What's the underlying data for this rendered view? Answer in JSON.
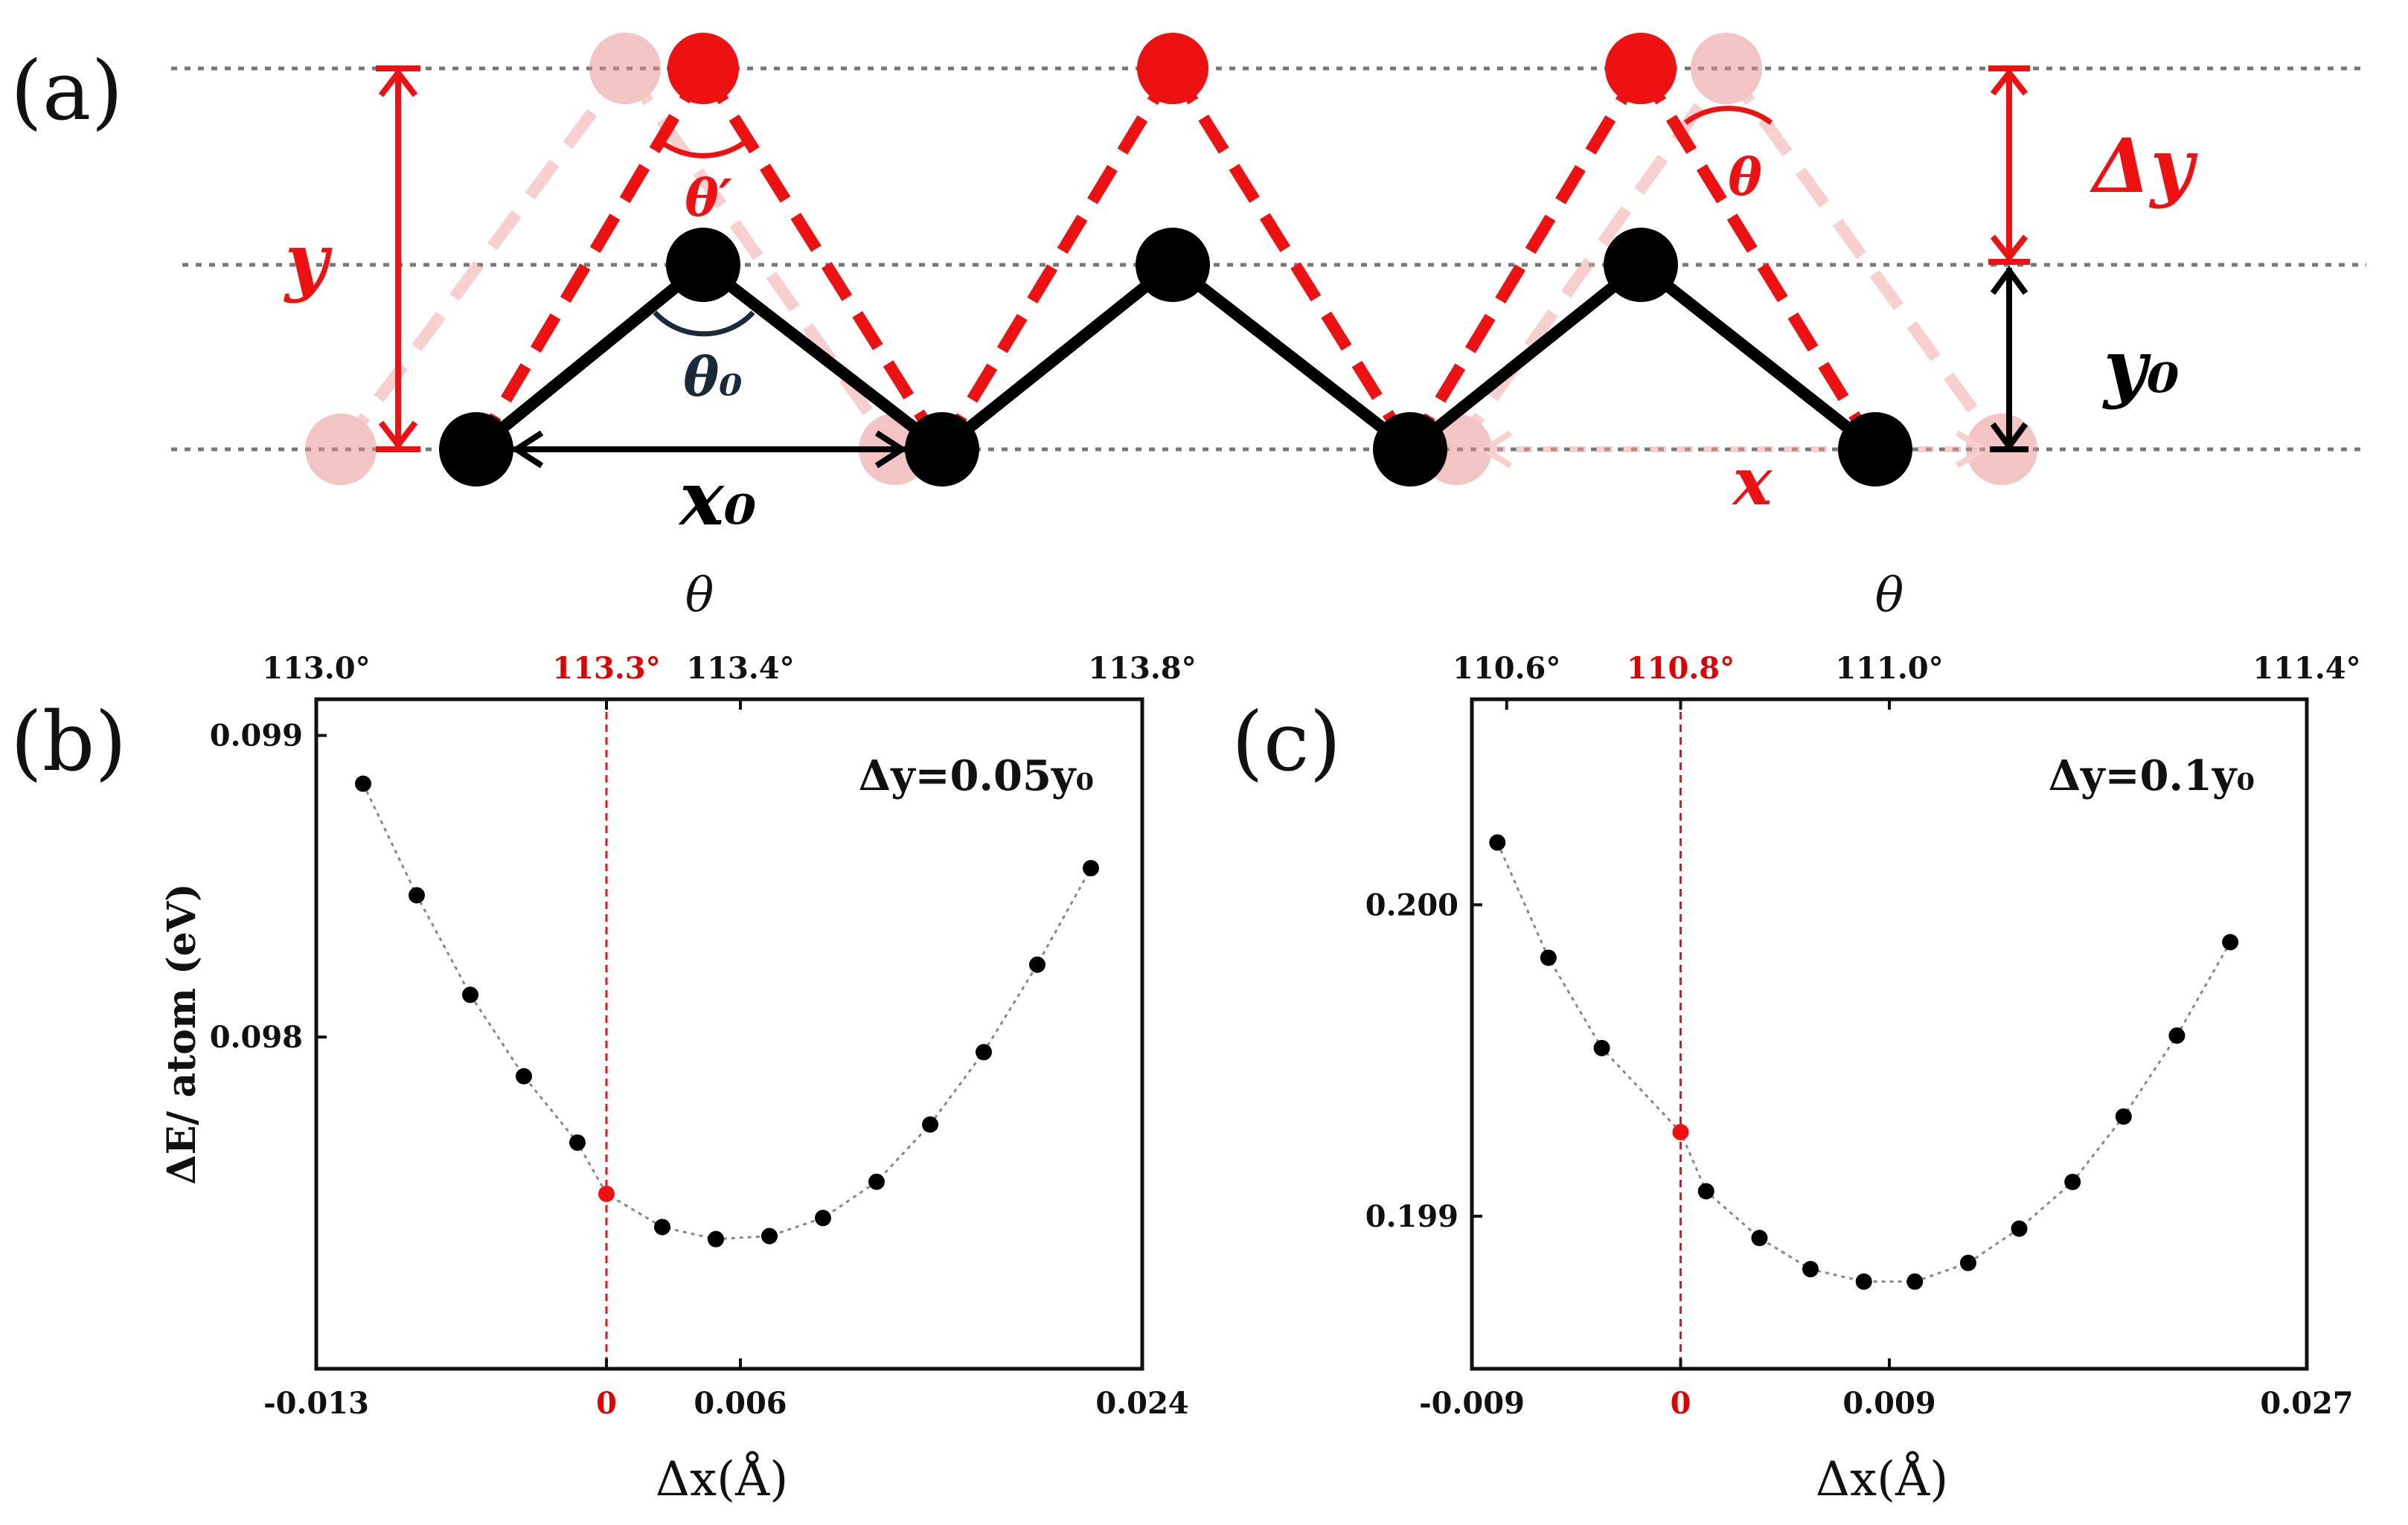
{
  "panel_a": {
    "label": "(a)",
    "labels": {
      "y": "y",
      "theta_prime": "θ′",
      "theta": "θ",
      "theta0": "θ₀",
      "delta_y": "Δy",
      "y0": "y₀",
      "x0": "x₀",
      "x": "x"
    }
  },
  "chart_data": [
    {
      "type": "line",
      "panel_label": "(b)",
      "annotation": "Δy=0.05y₀",
      "xlabel": "Δx(Å)",
      "ylabel": "ΔE/ atom (eV)",
      "top_axis_title": "θ",
      "xlim": [
        -0.013,
        0.024
      ],
      "ylim": [
        0.0969,
        0.09912
      ],
      "x_ticks": [
        "-0.013",
        "0",
        "0.006",
        "0.024"
      ],
      "x_tick_values": [
        -0.013,
        0,
        0.006,
        0.024
      ],
      "y_ticks": [
        "0.098",
        "0.099"
      ],
      "y_tick_values": [
        0.098,
        0.099
      ],
      "top_ticks": [
        "113.0°",
        "113.3°",
        "113.4°",
        "113.8°"
      ],
      "top_tick_values": [
        -0.013,
        0,
        0.006,
        0.024
      ],
      "highlight_x": 0,
      "highlight_index": 5,
      "x": [
        -0.0109,
        -0.0085,
        -0.0061,
        -0.0037,
        -0.0013,
        0,
        0.0025,
        0.0049,
        0.0073,
        0.0097,
        0.0121,
        0.0145,
        0.0169,
        0.0193,
        0.0217
      ],
      "y": [
        0.09884,
        0.09847,
        0.09814,
        0.09787,
        0.09765,
        0.09748,
        0.09737,
        0.09733,
        0.09734,
        0.0974,
        0.09752,
        0.09771,
        0.09795,
        0.09824,
        0.09856
      ]
    },
    {
      "type": "line",
      "panel_label": "(c)",
      "annotation": "Δy=0.1y₀",
      "xlabel": "Δx(Å)",
      "ylabel": "",
      "top_axis_title": "θ",
      "xlim": [
        -0.009,
        0.027
      ],
      "ylim": [
        0.19851,
        0.20066
      ],
      "x_ticks": [
        "-0.009",
        "0",
        "0.009",
        "0.027"
      ],
      "x_tick_values": [
        -0.009,
        0,
        0.009,
        0.027
      ],
      "y_ticks": [
        "0.200",
        "0.199"
      ],
      "y_tick_values": [
        0.2,
        0.199
      ],
      "top_ticks": [
        "110.6°",
        "110.8°",
        "111.0°",
        "111.4°"
      ],
      "top_tick_values": [
        -0.0075,
        0,
        0.009,
        0.027
      ],
      "highlight_x": 0,
      "highlight_index": 3,
      "x": [
        -0.0079,
        -0.0057,
        -0.0034,
        0,
        0.0011,
        0.0034,
        0.0056,
        0.0079,
        0.0101,
        0.0124,
        0.0146,
        0.0169,
        0.0191,
        0.0214,
        0.0237
      ],
      "y": [
        0.2002,
        0.19983,
        0.19954,
        0.19927,
        0.19908,
        0.19893,
        0.19883,
        0.19879,
        0.19879,
        0.19885,
        0.19896,
        0.19911,
        0.19932,
        0.19958,
        0.19988
      ]
    }
  ]
}
